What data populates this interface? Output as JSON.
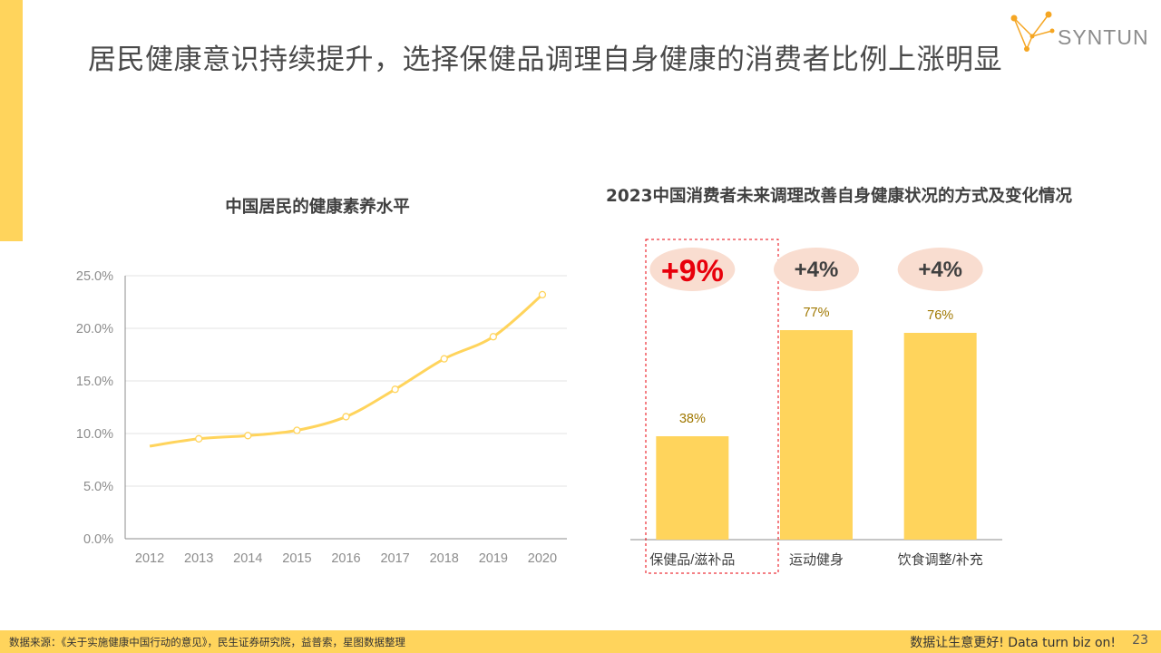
{
  "header": {
    "title": "居民健康意识持续提升，选择保健品调理自身健康的消费者比例上涨明显",
    "logo_text": "SYNTUN"
  },
  "colors": {
    "accent": "#FFD45C",
    "bar": "#FFD45C",
    "highlight_text": "#E8000B",
    "bubble": "#F9DDD0"
  },
  "chart_data": [
    {
      "type": "line",
      "title": "中国居民的健康素养水平",
      "x": [
        "2012",
        "2013",
        "2014",
        "2015",
        "2016",
        "2017",
        "2018",
        "2019",
        "2020"
      ],
      "series": [
        {
          "values": [
            8.8,
            9.5,
            9.8,
            10.3,
            11.6,
            14.2,
            17.1,
            19.2,
            23.2
          ]
        }
      ],
      "ylim": [
        0,
        25
      ],
      "yticks": [
        "0.0%",
        "5.0%",
        "10.0%",
        "15.0%",
        "20.0%",
        "25.0%"
      ],
      "grid": true
    },
    {
      "type": "bar",
      "title": "2023中国消费者未来调理改善自身健康状况的方式及变化情况",
      "categories": [
        "保健品/滋补品",
        "运动健身",
        "饮食调整/补充"
      ],
      "values": [
        38,
        77,
        76
      ],
      "value_labels": [
        "38%",
        "77%",
        "76%"
      ],
      "changes": [
        "+9%",
        "+4%",
        "+4%"
      ],
      "ylim": [
        0,
        90
      ]
    }
  ],
  "footer": {
    "source": "数据来源：《关于实施健康中国行动的意见》，民生证券研究院，益普索，星图数据整理",
    "slogan": "数据让生意更好! Data turn biz on!",
    "page": "23"
  }
}
